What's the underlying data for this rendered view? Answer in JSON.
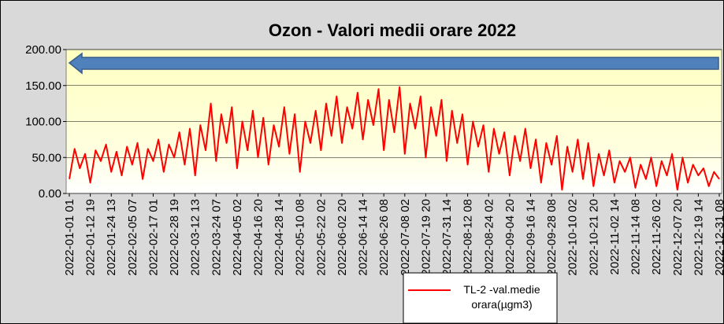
{
  "chart_data": {
    "type": "line",
    "title": "Ozon - Valori medii orare 2022",
    "categories": [
      "2022-01-01 01",
      null,
      null,
      null,
      "2022-01-12 19",
      null,
      null,
      null,
      "2022-01-24 13",
      null,
      null,
      null,
      "2022-02-05 07",
      null,
      null,
      null,
      "2022-02-17 01",
      null,
      null,
      null,
      "2022-02-28 19",
      null,
      null,
      null,
      "2022-03-12 13",
      null,
      null,
      null,
      "2022-03-24 07",
      null,
      null,
      null,
      "2022-04-05 02",
      null,
      null,
      null,
      "2022-04-16 20",
      null,
      null,
      null,
      "2022-04-28 14",
      null,
      null,
      null,
      "2022-05-10 08",
      null,
      null,
      null,
      "2022-05-22 02",
      null,
      null,
      null,
      "2022-06-02 20",
      null,
      null,
      null,
      "2022-06-14 14",
      null,
      null,
      null,
      "2022-06-26 08",
      null,
      null,
      null,
      "2022-07-08 02",
      null,
      null,
      null,
      "2022-07-19 20",
      null,
      null,
      null,
      "2022-07-31 14",
      null,
      null,
      null,
      "2022-08-12 08",
      null,
      null,
      null,
      "2022-08-24 02",
      null,
      null,
      null,
      "2022-09-04 20",
      null,
      null,
      null,
      "2022-09-16 14",
      null,
      null,
      null,
      "2022-09-28 08",
      null,
      null,
      null,
      "2022-10-10 02",
      null,
      null,
      null,
      "2022-10-21 20",
      null,
      null,
      null,
      "2022-11-02 14",
      null,
      null,
      null,
      "2022-11-14 08",
      null,
      null,
      null,
      "2022-11-26 02",
      null,
      null,
      null,
      "2022-12-07 20",
      null,
      null,
      null,
      "2022-12-19 14",
      null,
      null,
      null,
      "2022-12-31 08"
    ],
    "series": [
      {
        "name": "TL-2 -val.medie orara(µgm3)",
        "color": "#ff0000",
        "values": [
          20,
          62,
          35,
          55,
          15,
          60,
          45,
          68,
          30,
          58,
          25,
          65,
          40,
          70,
          20,
          62,
          45,
          75,
          30,
          68,
          50,
          85,
          40,
          90,
          25,
          95,
          60,
          125,
          45,
          110,
          70,
          120,
          35,
          100,
          60,
          115,
          50,
          105,
          40,
          95,
          65,
          120,
          55,
          110,
          30,
          100,
          70,
          115,
          60,
          125,
          80,
          135,
          70,
          120,
          90,
          140,
          75,
          130,
          95,
          145,
          60,
          130,
          85,
          148,
          55,
          125,
          90,
          135,
          50,
          120,
          80,
          130,
          45,
          115,
          70,
          110,
          40,
          100,
          65,
          95,
          30,
          90,
          55,
          85,
          25,
          80,
          45,
          90,
          35,
          75,
          15,
          70,
          40,
          80,
          5,
          65,
          30,
          75,
          20,
          70,
          10,
          55,
          25,
          60,
          15,
          45,
          30,
          50,
          8,
          40,
          20,
          50,
          10,
          45,
          25,
          55,
          5,
          50,
          15,
          40,
          25,
          35,
          10,
          30,
          20
        ]
      }
    ],
    "ylim": [
      0,
      200
    ],
    "yticks": [
      {
        "value": 0,
        "label": "0.00"
      },
      {
        "value": 50,
        "label": "50.00"
      },
      {
        "value": 100,
        "label": "100.00"
      },
      {
        "value": 150,
        "label": "150.00"
      },
      {
        "value": 200,
        "label": "200.00"
      }
    ],
    "grid": true
  }
}
